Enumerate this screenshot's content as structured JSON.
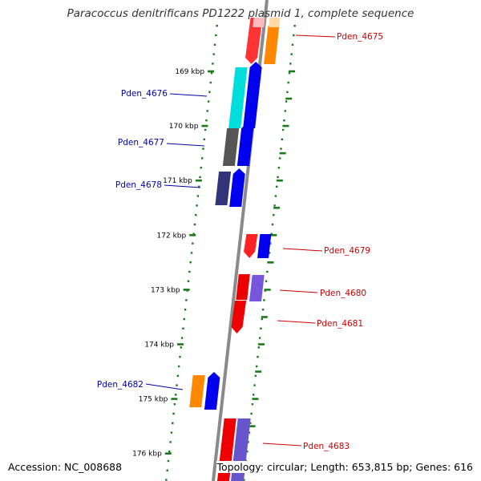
{
  "title": "Paracoccus denitrificans PD1222 plasmid 1, complete sequence",
  "footer": {
    "accession": "Accession: NC_008688",
    "summary": "Topology: circular; Length: 653,815 bp; Genes: 616"
  },
  "colors": {
    "backbone": "#8a8a8a",
    "tick": "#1a7a1a",
    "forward_label": "#cc0000",
    "reverse_label": "#0000aa"
  },
  "ruler": [
    {
      "label": "169 kbp",
      "kbp": 169
    },
    {
      "label": "170 kbp",
      "kbp": 170
    },
    {
      "label": "171 kbp",
      "kbp": 171
    },
    {
      "label": "172 kbp",
      "kbp": 172
    },
    {
      "label": "173 kbp",
      "kbp": 173
    },
    {
      "label": "174 kbp",
      "kbp": 174
    },
    {
      "label": "175 kbp",
      "kbp": 175
    },
    {
      "label": "176 kbp",
      "kbp": 176
    }
  ],
  "genes": [
    {
      "label": "Pden_4675",
      "strand": "forward"
    },
    {
      "label": "Pden_4676",
      "strand": "reverse"
    },
    {
      "label": "Pden_4677",
      "strand": "reverse"
    },
    {
      "label": "Pden_4678",
      "strand": "reverse"
    },
    {
      "label": "Pden_4679",
      "strand": "forward"
    },
    {
      "label": "Pden_4680",
      "strand": "forward"
    },
    {
      "label": "Pden_4681",
      "strand": "forward"
    },
    {
      "label": "Pden_4682",
      "strand": "reverse"
    },
    {
      "label": "Pden_4683",
      "strand": "forward"
    }
  ]
}
